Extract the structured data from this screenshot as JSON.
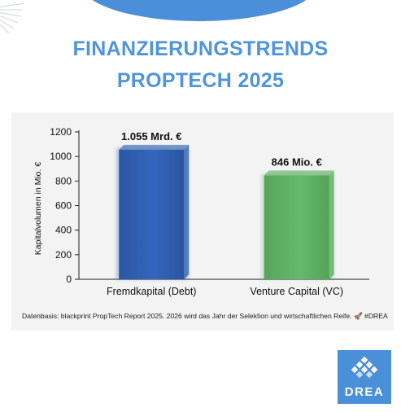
{
  "page": {
    "headline_line1": "FINANZIERUNGSTRENDS",
    "headline_line2": "PROPTECH 2025",
    "source_note": "Datenbasis: blackprint PropTech Report 2025. 2026 wird das Jahr der Selektion und wirtschaftlichen Reife. 🚀 #DREA",
    "logo_text": "DREA",
    "colors": {
      "accent": "#4a90d9",
      "headline": "#4f95dc"
    }
  },
  "chart_data": {
    "type": "bar",
    "categories": [
      "Fremdkapital (Debt)",
      "Venture Capital (VC)"
    ],
    "values": [
      1055,
      846
    ],
    "data_labels": [
      "1.055 Mrd. €",
      "846 Mio. €"
    ],
    "ylabel": "Kapitalvolumen in Mio. €",
    "ylim": [
      0,
      1200
    ],
    "yticks": [
      0,
      200,
      400,
      600,
      800,
      1000,
      1200
    ],
    "bar_colors": [
      "#2f5fb0",
      "#5cae62"
    ],
    "grid": false,
    "legend": "none"
  }
}
